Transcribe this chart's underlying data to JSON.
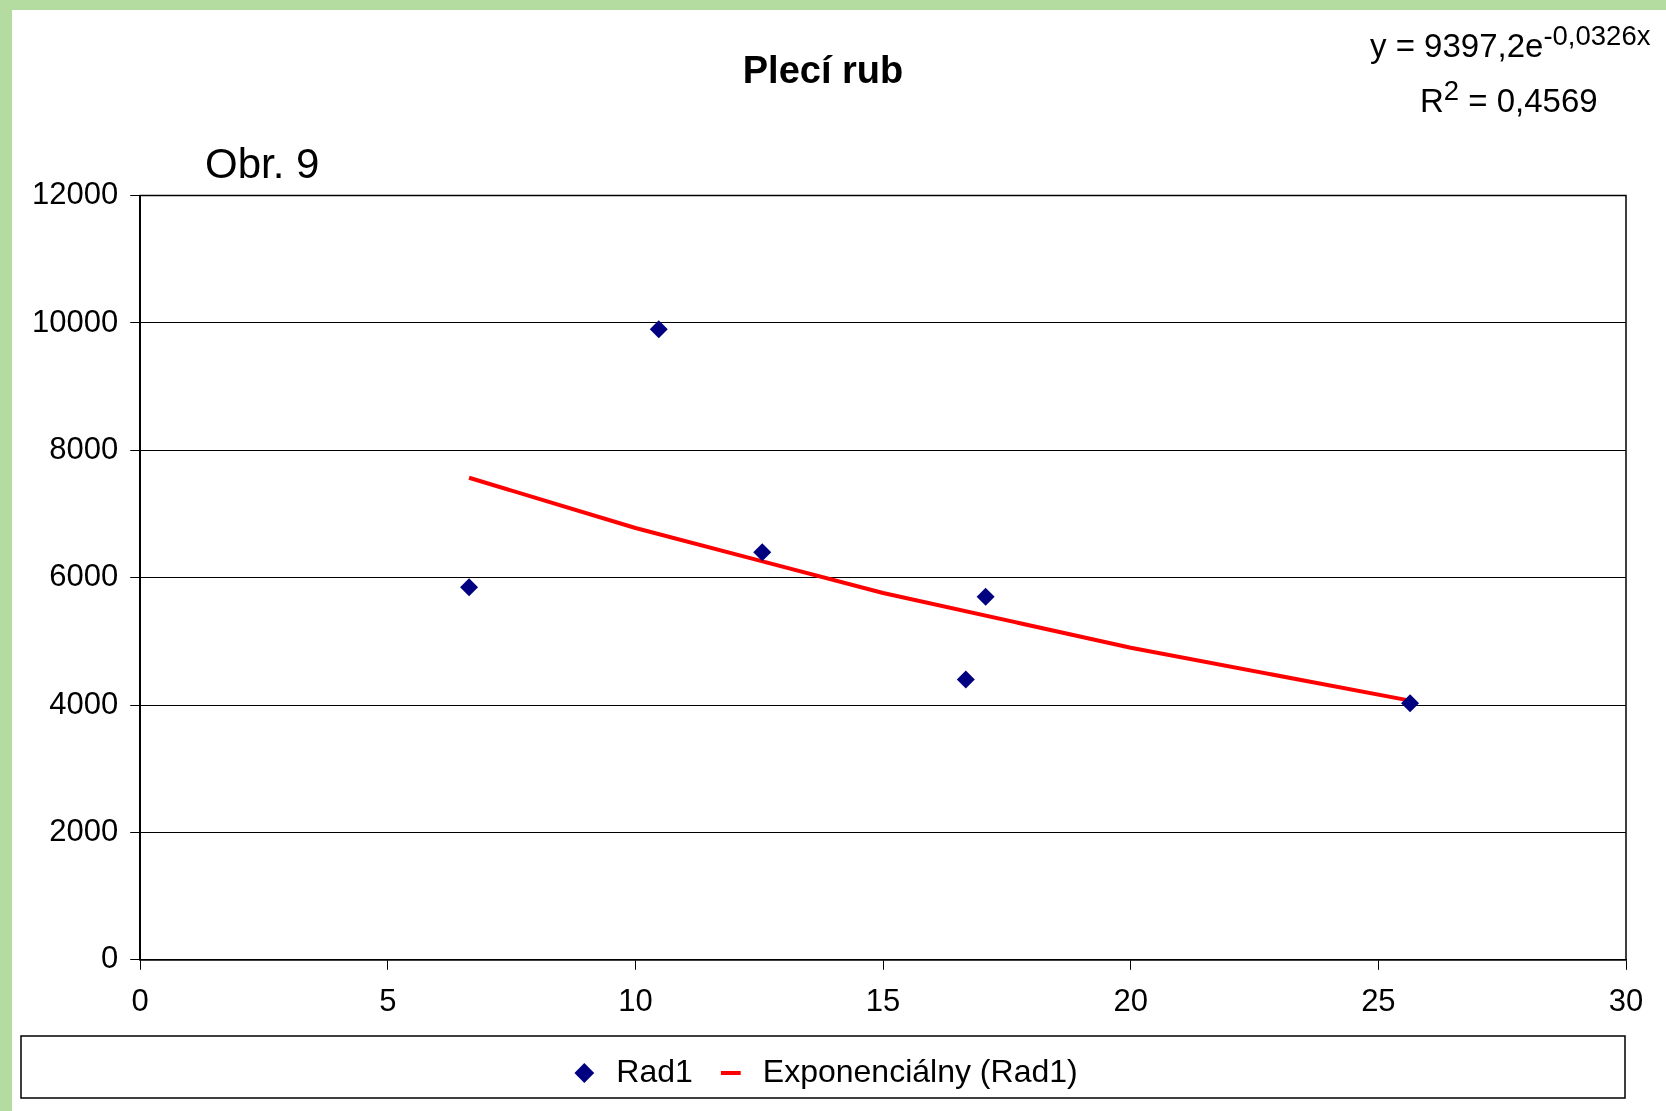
{
  "chart_data": {
    "type": "scatter",
    "title": "Plecí rub",
    "series": [
      {
        "name": "Rad1",
        "type": "scatter",
        "color": "#000080",
        "marker": "diamond",
        "x": [
          6.64,
          10.47,
          12.56,
          16.67,
          17.07,
          25.64
        ],
        "values": [
          5850,
          9900,
          6400,
          4400,
          5700,
          4030
        ]
      },
      {
        "name": "Exponenciálny (Rad1)",
        "type": "line",
        "color": "#ff0000",
        "marker": "none",
        "line_style": "solid",
        "x": [
          6.64,
          10,
          15,
          20,
          25.64
        ],
        "values": [
          7570,
          6780,
          5760,
          4900,
          4070
        ]
      }
    ],
    "xlim": [
      0,
      30
    ],
    "xticks": [
      0,
      5,
      10,
      15,
      20,
      25,
      30
    ],
    "ylim": [
      0,
      12000
    ],
    "yticks": [
      0,
      2000,
      4000,
      6000,
      8000,
      10000,
      12000
    ],
    "grid": "y",
    "legend": "bottom",
    "annotations": [
      "Obr. 9",
      "y = 9397,2e$^{-0,0326x}$",
      "R$^{2}$ = 0,4569"
    ]
  }
}
